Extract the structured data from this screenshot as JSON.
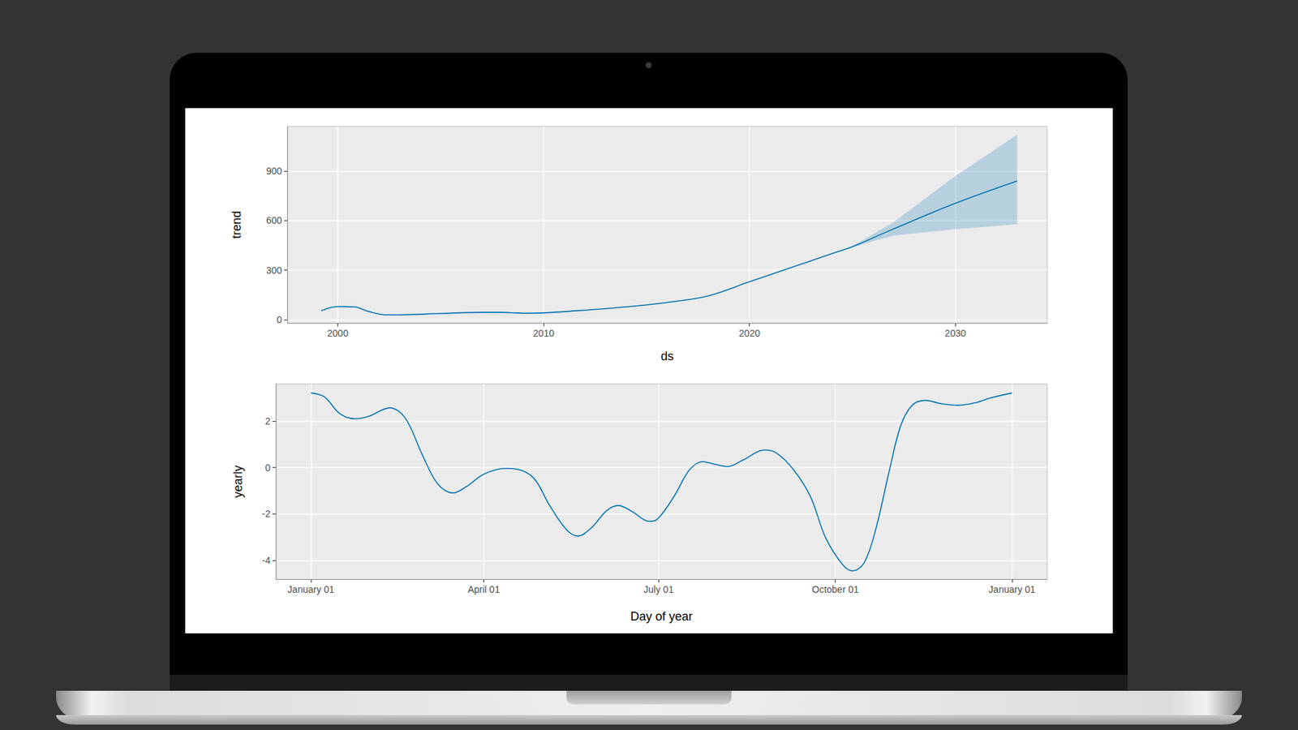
{
  "chart_data": [
    {
      "type": "line",
      "x_label": "ds",
      "y_label": "trend",
      "x": [
        1999.2,
        2000,
        2000.8,
        2001.5,
        2002.3,
        2003,
        2005,
        2007,
        2008,
        2009,
        2010,
        2012,
        2014,
        2016,
        2018,
        2020,
        2022,
        2024,
        2025,
        2027,
        2030,
        2033
      ],
      "values": [
        55,
        80,
        78,
        50,
        30,
        30,
        38,
        45,
        45,
        40,
        42,
        58,
        78,
        105,
        145,
        230,
        315,
        400,
        442,
        550,
        705,
        840
      ],
      "band": {
        "x": [
          2024,
          2025,
          2027,
          2030,
          2033
        ],
        "lower": [
          400,
          440,
          510,
          548,
          578
        ],
        "upper": [
          400,
          445,
          590,
          870,
          1120
        ]
      },
      "color": "#0072B2",
      "xlim": [
        1997.55,
        2034.46
      ],
      "xticks": [
        2000,
        2010,
        2020,
        2030
      ],
      "ylim": [
        -20,
        1170
      ],
      "yticks": [
        0,
        300,
        600,
        900
      ],
      "grid": true
    },
    {
      "type": "line",
      "x_label": "Day of year",
      "y_label": "yearly",
      "x": [
        0,
        7,
        15,
        23,
        30,
        41,
        49,
        58,
        66,
        74,
        81,
        90,
        101,
        107,
        116,
        124,
        133,
        139,
        146,
        154,
        160,
        167,
        176,
        180,
        189,
        197,
        204,
        210,
        217,
        225,
        236,
        242,
        251,
        260,
        268,
        277,
        282,
        288,
        294,
        301,
        307,
        313,
        320,
        328,
        337,
        346,
        354,
        365
      ],
      "values": [
        3.21,
        3.04,
        2.32,
        2.1,
        2.2,
        2.57,
        2.14,
        0.54,
        -0.71,
        -1.1,
        -0.82,
        -0.29,
        -0.04,
        -0.07,
        -0.46,
        -1.6,
        -2.68,
        -2.96,
        -2.6,
        -1.86,
        -1.64,
        -1.89,
        -2.32,
        -2.25,
        -1.25,
        -0.11,
        0.25,
        0.14,
        0.04,
        0.32,
        0.75,
        0.64,
        -0.07,
        -1.25,
        -3.04,
        -4.21,
        -4.46,
        -4.11,
        -2.68,
        -0.18,
        1.79,
        2.68,
        2.89,
        2.75,
        2.68,
        2.79,
        3.0,
        3.21
      ],
      "color": "#0072B2",
      "xlim": [
        -18.3,
        383.3
      ],
      "xticks": [
        {
          "value": 0,
          "label": "January 01"
        },
        {
          "value": 90,
          "label": "April 01"
        },
        {
          "value": 181,
          "label": "July 01"
        },
        {
          "value": 273,
          "label": "October 01"
        },
        {
          "value": 365,
          "label": "January 01"
        }
      ],
      "ylim": [
        -4.82,
        3.6
      ],
      "yticks": [
        -4,
        -2,
        0,
        2
      ],
      "grid": true
    }
  ]
}
